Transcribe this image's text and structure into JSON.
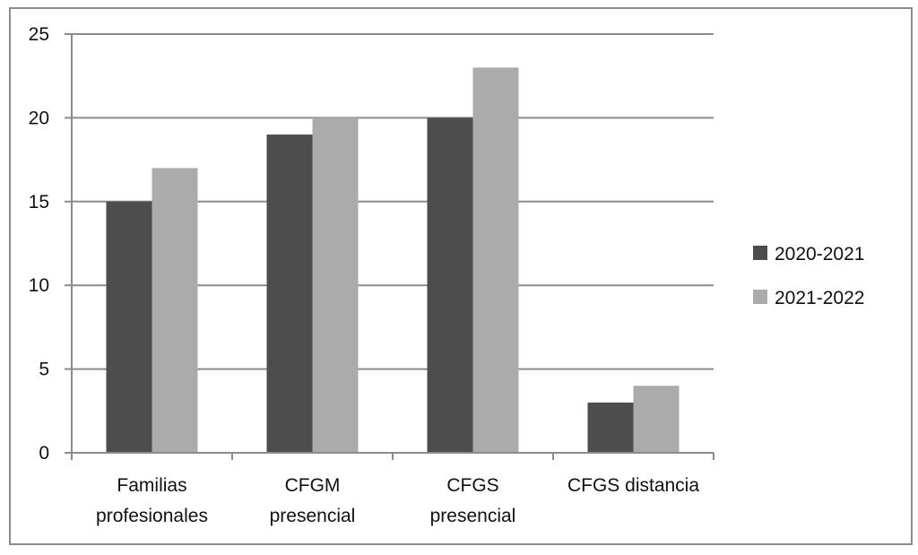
{
  "chart_data": {
    "type": "bar",
    "categories": [
      [
        "Familias",
        "profesionales"
      ],
      [
        "CFGM",
        "presencial"
      ],
      [
        "CFGS",
        "presencial"
      ],
      [
        "CFGS distancia"
      ]
    ],
    "series": [
      {
        "name": "2020-2021",
        "values": [
          15,
          19,
          20,
          3
        ],
        "color": "#4d4d4d"
      },
      {
        "name": "2021-2022",
        "values": [
          17,
          20,
          23,
          4
        ],
        "color": "#ababab"
      }
    ],
    "ylim": [
      0,
      25
    ],
    "yticks": [
      0,
      5,
      10,
      15,
      20,
      25
    ],
    "grid": true,
    "legend": "right"
  }
}
